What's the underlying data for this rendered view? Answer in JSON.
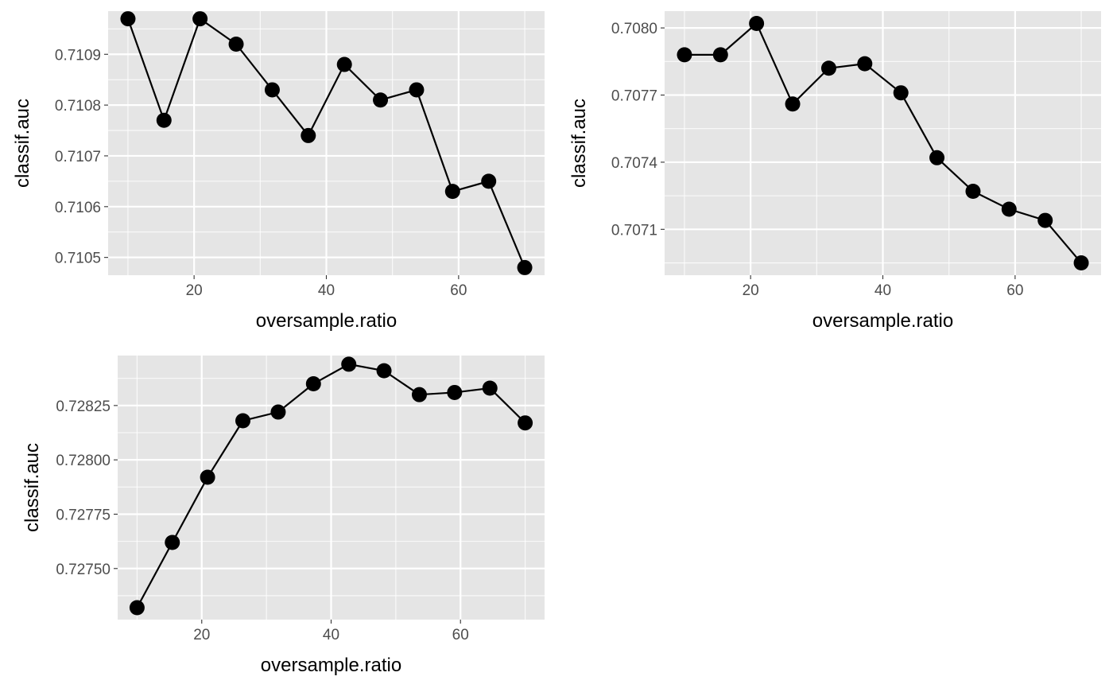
{
  "chart_data": [
    {
      "type": "scatter",
      "connected": true,
      "xlabel": "oversample.ratio",
      "ylabel": "classif.auc",
      "x": [
        10,
        15.45,
        20.9,
        26.36,
        31.82,
        37.27,
        42.73,
        48.18,
        53.64,
        59.09,
        64.55,
        70
      ],
      "y": [
        0.71097,
        0.71077,
        0.71097,
        0.71092,
        0.71083,
        0.71074,
        0.71088,
        0.71081,
        0.71083,
        0.71063,
        0.71065,
        0.71048
      ],
      "xlim": [
        7,
        73
      ],
      "ylim": [
        0.710465,
        0.710985
      ],
      "x_ticks": [
        20,
        40,
        60
      ],
      "x_tick_labels": [
        "20",
        "40",
        "60"
      ],
      "y_ticks": [
        0.7105,
        0.7106,
        0.7107,
        0.7108,
        0.7109
      ],
      "y_tick_labels": [
        "0.7105",
        "0.7106",
        "0.7107",
        "0.7108",
        "0.7109"
      ],
      "grid": true
    },
    {
      "type": "scatter",
      "connected": true,
      "xlabel": "oversample.ratio",
      "ylabel": "classif.auc",
      "x": [
        10,
        15.45,
        20.9,
        26.36,
        31.82,
        37.27,
        42.73,
        48.18,
        53.64,
        59.09,
        64.55,
        70
      ],
      "y": [
        0.70788,
        0.70788,
        0.70802,
        0.70766,
        0.70782,
        0.70784,
        0.70771,
        0.70742,
        0.70727,
        0.70719,
        0.70714,
        0.70695
      ],
      "xlim": [
        7,
        73
      ],
      "ylim": [
        0.706895,
        0.708075
      ],
      "x_ticks": [
        20,
        40,
        60
      ],
      "x_tick_labels": [
        "20",
        "40",
        "60"
      ],
      "y_ticks": [
        0.7071,
        0.7074,
        0.7077,
        0.708
      ],
      "y_tick_labels": [
        "0.7071",
        "0.7074",
        "0.7077",
        "0.7080"
      ],
      "grid": true
    },
    {
      "type": "scatter",
      "connected": true,
      "xlabel": "oversample.ratio",
      "ylabel": "classif.auc",
      "x": [
        10,
        15.45,
        20.9,
        26.36,
        31.82,
        37.27,
        42.73,
        48.18,
        53.64,
        59.09,
        64.55,
        70
      ],
      "y": [
        0.72732,
        0.72762,
        0.72792,
        0.72818,
        0.72822,
        0.72835,
        0.72844,
        0.72841,
        0.7283,
        0.72831,
        0.72833,
        0.72817
      ],
      "xlim": [
        7,
        73
      ],
      "ylim": [
        0.727265,
        0.72848
      ],
      "x_ticks": [
        20,
        40,
        60
      ],
      "x_tick_labels": [
        "20",
        "40",
        "60"
      ],
      "y_ticks": [
        0.7275,
        0.72775,
        0.728,
        0.72825
      ],
      "y_tick_labels": [
        "0.72750",
        "0.72775",
        "0.72800",
        "0.72825"
      ],
      "grid": true
    }
  ]
}
